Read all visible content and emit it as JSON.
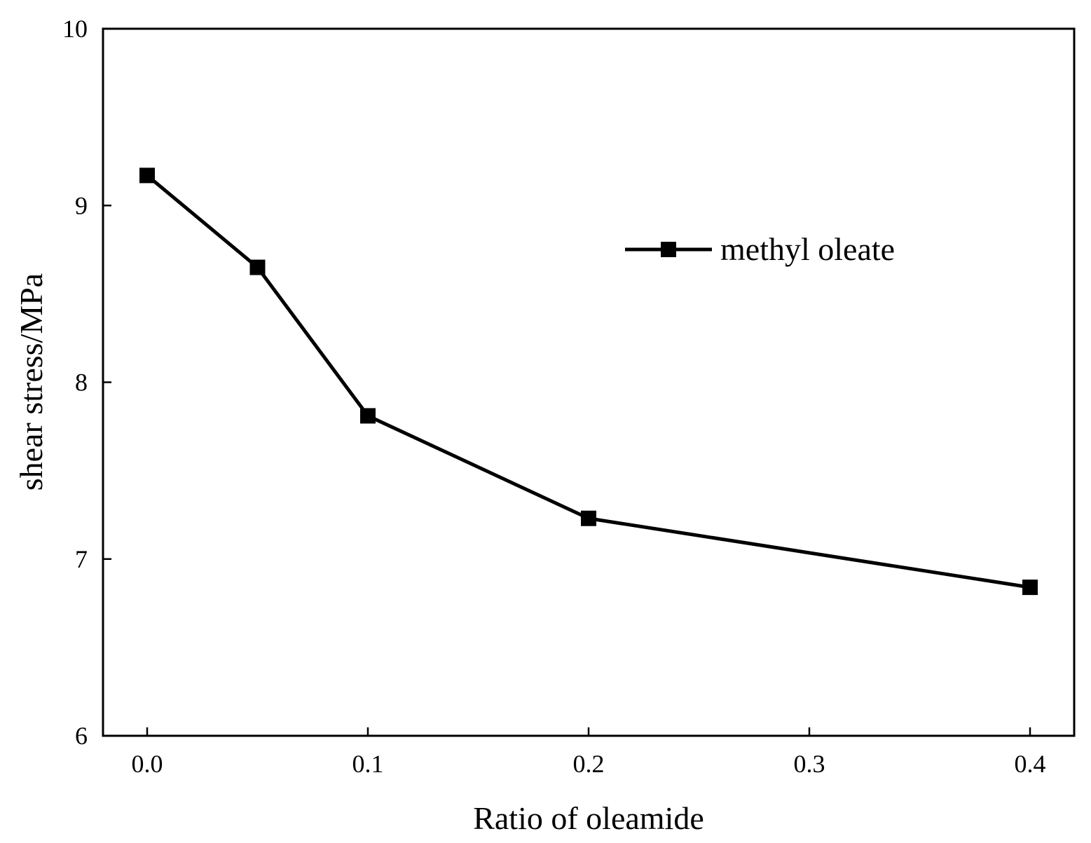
{
  "chart_data": {
    "type": "line",
    "xlabel": "Ratio of oleamide",
    "ylabel": "shear stress/MPa",
    "xlim": [
      -0.02,
      0.42
    ],
    "ylim": [
      6,
      10
    ],
    "x_ticks": [
      0.0,
      0.1,
      0.2,
      0.3,
      0.4
    ],
    "x_tick_labels": [
      "0.0",
      "0.1",
      "0.2",
      "0.3",
      "0.4"
    ],
    "y_ticks": [
      6,
      7,
      8,
      9,
      10
    ],
    "y_tick_labels": [
      "6",
      "7",
      "8",
      "9",
      "10"
    ],
    "grid": false,
    "legend_position": "top-right",
    "series": [
      {
        "name": "methyl oleate",
        "marker": "square",
        "color": "#000000",
        "x": [
          0.0,
          0.05,
          0.1,
          0.2,
          0.4
        ],
        "y": [
          9.17,
          8.65,
          7.81,
          7.23,
          6.84
        ]
      }
    ]
  }
}
